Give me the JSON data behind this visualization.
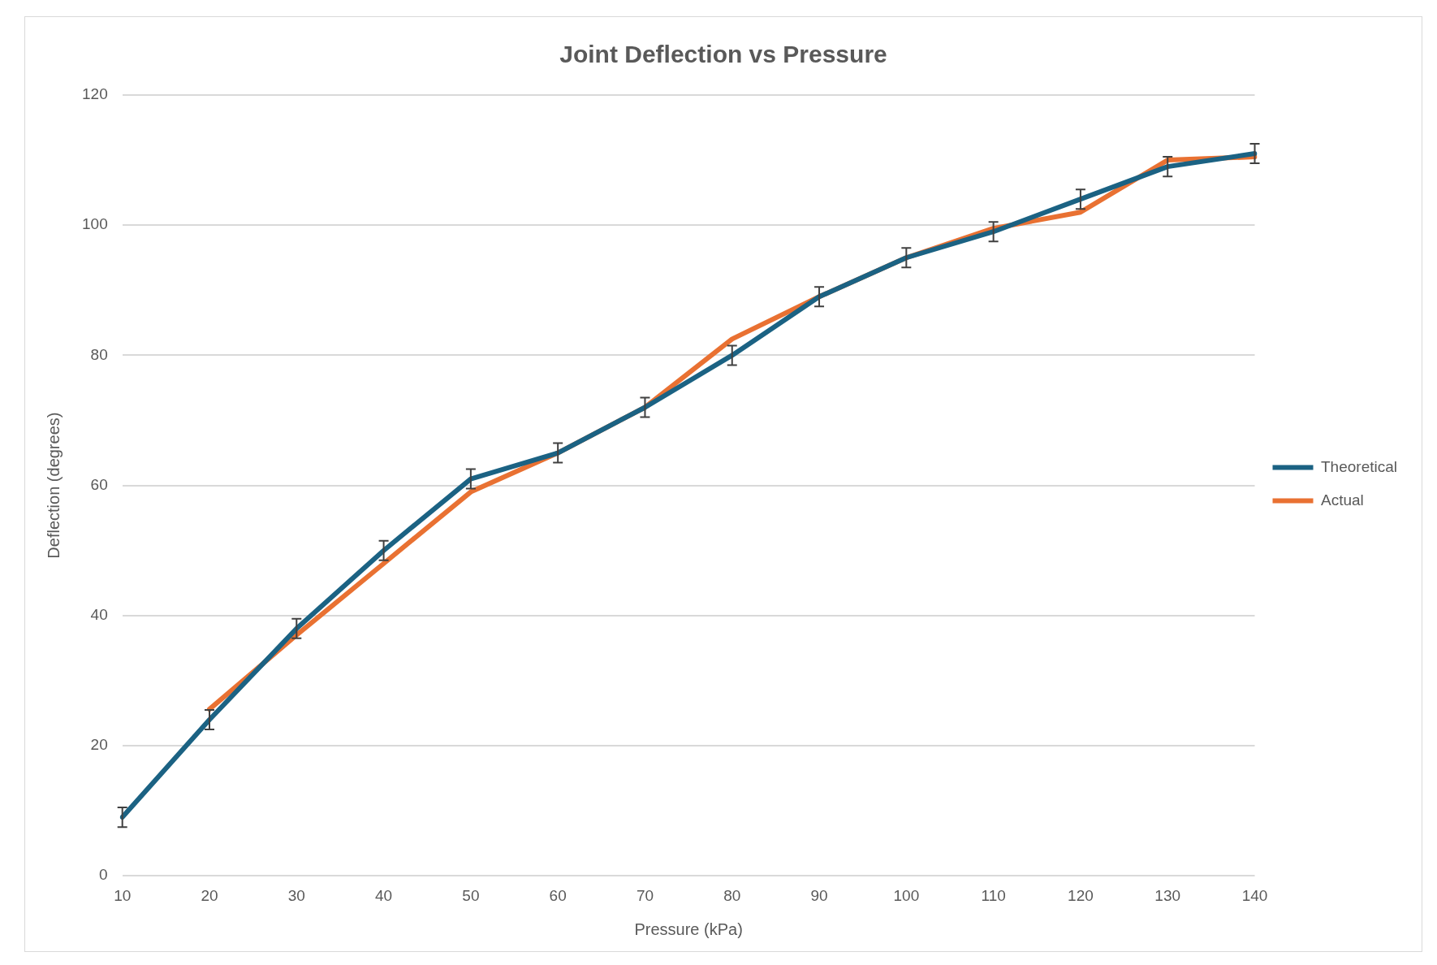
{
  "chart_data": {
    "type": "line",
    "title": "Joint Deflection vs Pressure",
    "xlabel": "Pressure (kPa)",
    "ylabel": "Deflection (degrees)",
    "categories": [
      "10",
      "20",
      "30",
      "40",
      "50",
      "60",
      "70",
      "80",
      "90",
      "100",
      "110",
      "120",
      "130",
      "140"
    ],
    "series": [
      {
        "name": "Theoretical",
        "color": "#1b6283",
        "values": [
          9,
          24,
          38,
          50,
          61,
          65,
          72,
          80,
          89,
          95,
          99,
          104,
          109,
          111
        ],
        "errors": [
          1.5,
          1.5,
          1.5,
          1.5,
          1.5,
          1.5,
          1.5,
          1.5,
          1.5,
          1.5,
          1.5,
          1.5,
          1.5,
          1.5
        ]
      },
      {
        "name": "Actual",
        "color": "#e97132",
        "values": [
          null,
          25.6,
          37,
          48,
          59,
          65,
          72,
          82.5,
          89,
          95,
          99.5,
          102,
          110,
          110.5
        ]
      }
    ],
    "ylim": [
      0,
      120
    ],
    "yticks": [
      0,
      20,
      40,
      60,
      80,
      100,
      120
    ],
    "grid": "y",
    "legend": "right",
    "marker": "none",
    "line_style": "solid"
  }
}
